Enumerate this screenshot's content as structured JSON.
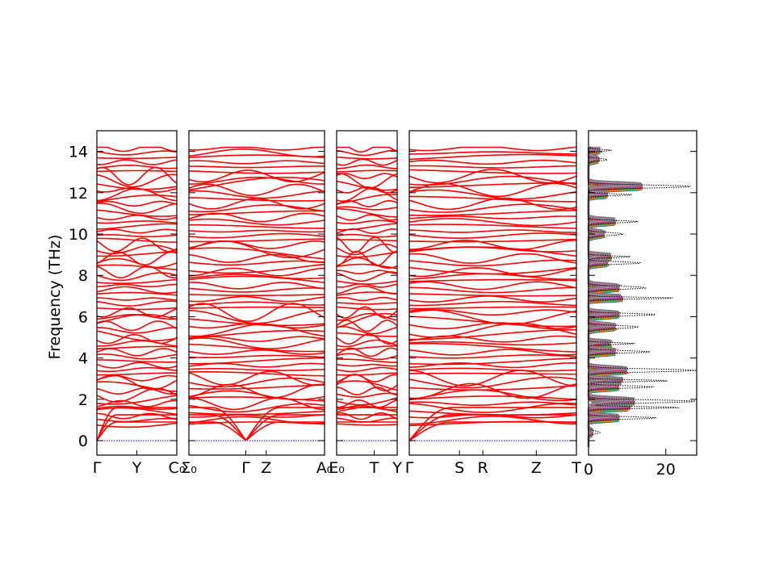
{
  "chart_data": {
    "type": "line",
    "ylabel": "Frequency (THz)",
    "ylim": [
      -0.7,
      15
    ],
    "yticks": [
      0,
      2,
      4,
      6,
      8,
      10,
      12,
      14
    ],
    "band_color": "#ff0000",
    "zero_line_color": "#0000cc",
    "segments": [
      {
        "labels": [
          "Γ",
          "Y",
          "C₀"
        ],
        "label_pos": [
          0,
          0.5,
          1
        ],
        "bands": [
          0.22,
          0.28,
          0.31,
          0.35,
          0.42,
          0.46,
          0.52,
          0.58,
          0.66,
          0.71,
          0.78,
          0.83,
          0.89,
          0.93,
          1.0
        ]
      },
      {
        "labels": [
          "Σ₀",
          "Γ",
          "Z",
          "A₀"
        ],
        "label_pos": [
          0,
          0.42,
          0.57,
          1
        ],
        "bands": [
          0.24,
          0.27,
          0.32,
          0.38,
          0.44,
          0.48,
          0.55,
          0.61,
          0.67,
          0.72,
          0.79,
          0.85,
          0.91,
          0.96,
          1.03
        ]
      },
      {
        "labels": [
          "E₀",
          "T",
          "Y"
        ],
        "label_pos": [
          0,
          0.62,
          1
        ],
        "bands": [
          0.21,
          0.26,
          0.33,
          0.37,
          0.43,
          0.47,
          0.53,
          0.59,
          0.64,
          0.7,
          0.77,
          0.82,
          0.88,
          0.94,
          0.99
        ]
      },
      {
        "labels": [
          "Γ",
          "S",
          "R",
          "Z",
          "T"
        ],
        "label_pos": [
          0,
          0.3,
          0.44,
          0.76,
          1
        ],
        "bands": [
          0.23,
          0.29,
          0.34,
          0.39,
          0.45,
          0.49,
          0.56,
          0.6,
          0.65,
          0.73,
          0.8,
          0.84,
          0.9,
          0.95,
          1.01
        ]
      }
    ],
    "dos": {
      "xlabel": "",
      "xlim": [
        0,
        28
      ],
      "xticks": [
        0,
        20
      ],
      "total_color": "#000000",
      "partial_colors": [
        "#1f77b4",
        "#ff7f0e",
        "#2ca02c",
        "#d62728",
        "#9467bd",
        "#8c564b",
        "#e377c2",
        "#7f7f7f"
      ],
      "peaks": [
        {
          "f": 14.05,
          "total": 6,
          "partial": 3
        },
        {
          "f": 13.6,
          "total": 5,
          "partial": 2.5
        },
        {
          "f": 12.3,
          "total": 27,
          "partial": 14
        },
        {
          "f": 11.9,
          "total": 12,
          "partial": 5
        },
        {
          "f": 10.6,
          "total": 13,
          "partial": 7
        },
        {
          "f": 10.0,
          "total": 9,
          "partial": 4
        },
        {
          "f": 8.9,
          "total": 11,
          "partial": 6
        },
        {
          "f": 8.6,
          "total": 14,
          "partial": 5
        },
        {
          "f": 7.4,
          "total": 15,
          "partial": 8
        },
        {
          "f": 6.9,
          "total": 23,
          "partial": 9
        },
        {
          "f": 6.1,
          "total": 18,
          "partial": 8
        },
        {
          "f": 5.5,
          "total": 13,
          "partial": 7
        },
        {
          "f": 4.7,
          "total": 12,
          "partial": 6
        },
        {
          "f": 4.3,
          "total": 16,
          "partial": 7
        },
        {
          "f": 3.4,
          "total": 28,
          "partial": 10
        },
        {
          "f": 2.9,
          "total": 21,
          "partial": 9
        },
        {
          "f": 2.6,
          "total": 17,
          "partial": 8
        },
        {
          "f": 1.9,
          "total": 28,
          "partial": 12
        },
        {
          "f": 1.6,
          "total": 25,
          "partial": 11
        },
        {
          "f": 1.1,
          "total": 18,
          "partial": 8
        },
        {
          "f": 0.4,
          "total": 3,
          "partial": 1
        }
      ]
    }
  }
}
